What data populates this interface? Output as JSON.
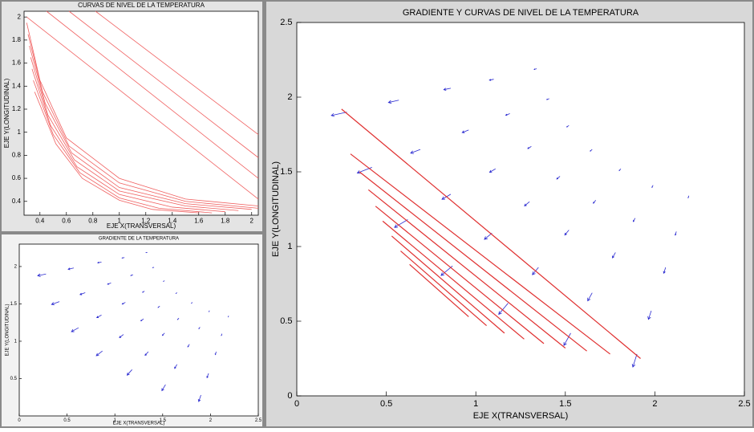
{
  "chart_data": [
    {
      "type": "contour",
      "title": "CURVAS DE NIVEL DE LA TEMPERATURA",
      "xlabel": "EJE X(TRANSVERSAL)",
      "ylabel": "EJE Y(LONGITUDINAL)",
      "xlim": [
        0.28,
        2.05
      ],
      "ylim": [
        0.28,
        2.05
      ],
      "xticks": [
        0.4,
        0.6,
        0.8,
        1,
        1.2,
        1.4,
        1.6,
        1.8,
        2
      ],
      "yticks": [
        0.4,
        0.6,
        0.8,
        1,
        1.2,
        1.4,
        1.6,
        1.8,
        2
      ],
      "line_color": "#f06060",
      "series": [
        {
          "x": [
            0.3,
            2.05
          ],
          "y": [
            2.0,
            0.42
          ]
        },
        {
          "x": [
            0.45,
            2.05
          ],
          "y": [
            2.05,
            0.6
          ]
        },
        {
          "x": [
            0.62,
            2.05
          ],
          "y": [
            2.05,
            0.78
          ]
        },
        {
          "x": [
            0.82,
            2.05
          ],
          "y": [
            2.05,
            0.98
          ]
        },
        {
          "x": [
            0.3,
            0.4,
            0.6,
            1.0,
            1.5,
            2.05
          ],
          "y": [
            1.95,
            1.45,
            0.95,
            0.6,
            0.42,
            0.36
          ]
        },
        {
          "x": [
            0.31,
            0.42,
            0.62,
            1.0,
            1.5,
            2.05
          ],
          "y": [
            1.85,
            1.35,
            0.88,
            0.56,
            0.4,
            0.34
          ]
        },
        {
          "x": [
            0.32,
            0.44,
            0.64,
            1.0,
            1.5,
            2.0
          ],
          "y": [
            1.75,
            1.25,
            0.82,
            0.52,
            0.38,
            0.33
          ]
        },
        {
          "x": [
            0.33,
            0.46,
            0.66,
            1.0,
            1.5,
            1.9
          ],
          "y": [
            1.65,
            1.15,
            0.76,
            0.49,
            0.36,
            0.32
          ]
        },
        {
          "x": [
            0.34,
            0.48,
            0.68,
            1.0,
            1.4,
            1.8
          ],
          "y": [
            1.55,
            1.06,
            0.7,
            0.46,
            0.35,
            0.31
          ]
        },
        {
          "x": [
            0.35,
            0.5,
            0.7,
            1.0,
            1.3,
            1.7
          ],
          "y": [
            1.45,
            0.98,
            0.65,
            0.43,
            0.34,
            0.3
          ]
        },
        {
          "x": [
            0.36,
            0.52,
            0.72,
            1.0,
            1.25,
            1.6
          ],
          "y": [
            1.35,
            0.9,
            0.6,
            0.41,
            0.33,
            0.3
          ]
        }
      ]
    },
    {
      "type": "quiver",
      "title": "GRADIENTE DE LA TEMPERATURA",
      "xlabel": "EJE X(TRANSVERSAL)",
      "ylabel": "EJE Y(LONGITUDINAL)",
      "xlim": [
        0,
        2.5
      ],
      "ylim": [
        0,
        2.3
      ],
      "xticks": [
        0,
        0.5,
        1,
        1.5,
        2,
        2.5
      ],
      "yticks": [
        0.5,
        1,
        1.5,
        2
      ],
      "arrow_color": "#2a2ad0",
      "x": [
        0.28,
        0.42,
        0.62,
        0.87,
        1.18,
        1.53,
        1.9,
        0.57,
        0.69,
        0.86,
        1.09,
        1.35,
        1.65,
        1.98,
        0.86,
        0.96,
        1.11,
        1.3,
        1.52,
        1.78,
        2.06,
        1.1,
        1.19,
        1.31,
        1.47,
        1.67,
        1.89,
        2.12,
        1.34,
        1.41,
        1.52,
        1.65,
        1.81,
        1.99,
        2.19
      ],
      "y": [
        1.9,
        1.53,
        1.18,
        0.87,
        0.62,
        0.42,
        0.28,
        1.98,
        1.65,
        1.35,
        1.09,
        0.86,
        0.69,
        0.57,
        2.06,
        1.78,
        1.52,
        1.3,
        1.11,
        0.96,
        0.86,
        2.12,
        1.89,
        1.67,
        1.47,
        1.31,
        1.19,
        1.1,
        2.19,
        1.99,
        1.81,
        1.65,
        1.52,
        1.41,
        1.34
      ],
      "u": [
        -0.087,
        -0.082,
        -0.074,
        -0.064,
        -0.052,
        -0.038,
        -0.023,
        -0.058,
        -0.054,
        -0.049,
        -0.042,
        -0.034,
        -0.025,
        -0.016,
        -0.039,
        -0.036,
        -0.033,
        -0.028,
        -0.023,
        -0.017,
        -0.01,
        -0.024,
        -0.023,
        -0.02,
        -0.018,
        -0.014,
        -0.011,
        -0.006,
        -0.014,
        -0.014,
        -0.012,
        -0.011,
        -0.009,
        -0.006,
        -0.004
      ],
      "v": [
        -0.023,
        -0.038,
        -0.052,
        -0.064,
        -0.074,
        -0.082,
        -0.087,
        -0.016,
        -0.025,
        -0.034,
        -0.042,
        -0.049,
        -0.054,
        -0.058,
        -0.01,
        -0.017,
        -0.023,
        -0.028,
        -0.033,
        -0.036,
        -0.039,
        -0.006,
        -0.011,
        -0.014,
        -0.018,
        -0.02,
        -0.023,
        -0.024,
        -0.004,
        -0.006,
        -0.009,
        -0.011,
        -0.012,
        -0.014,
        -0.014
      ]
    },
    {
      "type": "quiver",
      "title": "GRADIENTE Y CURVAS DE NIVEL DE LA TEMPERATURA",
      "xlabel": "EJE X(TRANSVERSAL)",
      "ylabel": "EJE Y(LONGITUDINAL)",
      "xlim": [
        0,
        2.5
      ],
      "ylim": [
        0,
        2.5
      ],
      "xticks": [
        0,
        0.5,
        1,
        1.5,
        2,
        2.5
      ],
      "yticks": [
        0,
        0.5,
        1,
        1.5,
        2,
        2.5
      ],
      "arrow_color": "#2a2ad0",
      "line_color": "#e03030",
      "x": [
        0.28,
        0.42,
        0.62,
        0.87,
        1.18,
        1.53,
        1.9,
        0.57,
        0.69,
        0.86,
        1.09,
        1.35,
        1.65,
        1.98,
        0.86,
        0.96,
        1.11,
        1.3,
        1.52,
        1.78,
        2.06,
        1.1,
        1.19,
        1.31,
        1.47,
        1.67,
        1.89,
        2.12,
        1.34,
        1.41,
        1.52,
        1.65,
        1.81,
        1.99,
        2.19
      ],
      "y": [
        1.9,
        1.53,
        1.18,
        0.87,
        0.62,
        0.42,
        0.28,
        1.98,
        1.65,
        1.35,
        1.09,
        0.86,
        0.69,
        0.57,
        2.06,
        1.78,
        1.52,
        1.3,
        1.11,
        0.96,
        0.86,
        2.12,
        1.89,
        1.67,
        1.47,
        1.31,
        1.19,
        1.1,
        2.19,
        1.99,
        1.81,
        1.65,
        1.52,
        1.41,
        1.34
      ],
      "u": [
        -0.087,
        -0.082,
        -0.074,
        -0.064,
        -0.052,
        -0.038,
        -0.023,
        -0.058,
        -0.054,
        -0.049,
        -0.042,
        -0.034,
        -0.025,
        -0.016,
        -0.039,
        -0.036,
        -0.033,
        -0.028,
        -0.023,
        -0.017,
        -0.01,
        -0.024,
        -0.023,
        -0.02,
        -0.018,
        -0.014,
        -0.011,
        -0.006,
        -0.014,
        -0.014,
        -0.012,
        -0.011,
        -0.009,
        -0.006,
        -0.004
      ],
      "v": [
        -0.023,
        -0.038,
        -0.052,
        -0.064,
        -0.074,
        -0.082,
        -0.087,
        -0.016,
        -0.025,
        -0.034,
        -0.042,
        -0.049,
        -0.054,
        -0.058,
        -0.01,
        -0.017,
        -0.023,
        -0.028,
        -0.033,
        -0.036,
        -0.039,
        -0.006,
        -0.011,
        -0.014,
        -0.018,
        -0.02,
        -0.023,
        -0.024,
        -0.004,
        -0.006,
        -0.009,
        -0.011,
        -0.012,
        -0.014,
        -0.014
      ],
      "series": [
        {
          "x": [
            0.25,
            1.92
          ],
          "y": [
            1.92,
            0.25
          ]
        },
        {
          "x": [
            0.3,
            1.75
          ],
          "y": [
            1.62,
            0.28
          ]
        },
        {
          "x": [
            0.35,
            1.62
          ],
          "y": [
            1.5,
            0.3
          ]
        },
        {
          "x": [
            0.4,
            1.5
          ],
          "y": [
            1.38,
            0.32
          ]
        },
        {
          "x": [
            0.44,
            1.38
          ],
          "y": [
            1.27,
            0.35
          ]
        },
        {
          "x": [
            0.48,
            1.27
          ],
          "y": [
            1.17,
            0.38
          ]
        },
        {
          "x": [
            0.53,
            1.16
          ],
          "y": [
            1.07,
            0.42
          ]
        },
        {
          "x": [
            0.58,
            1.06
          ],
          "y": [
            0.97,
            0.47
          ]
        },
        {
          "x": [
            0.63,
            0.96
          ],
          "y": [
            0.88,
            0.53
          ]
        }
      ]
    }
  ]
}
